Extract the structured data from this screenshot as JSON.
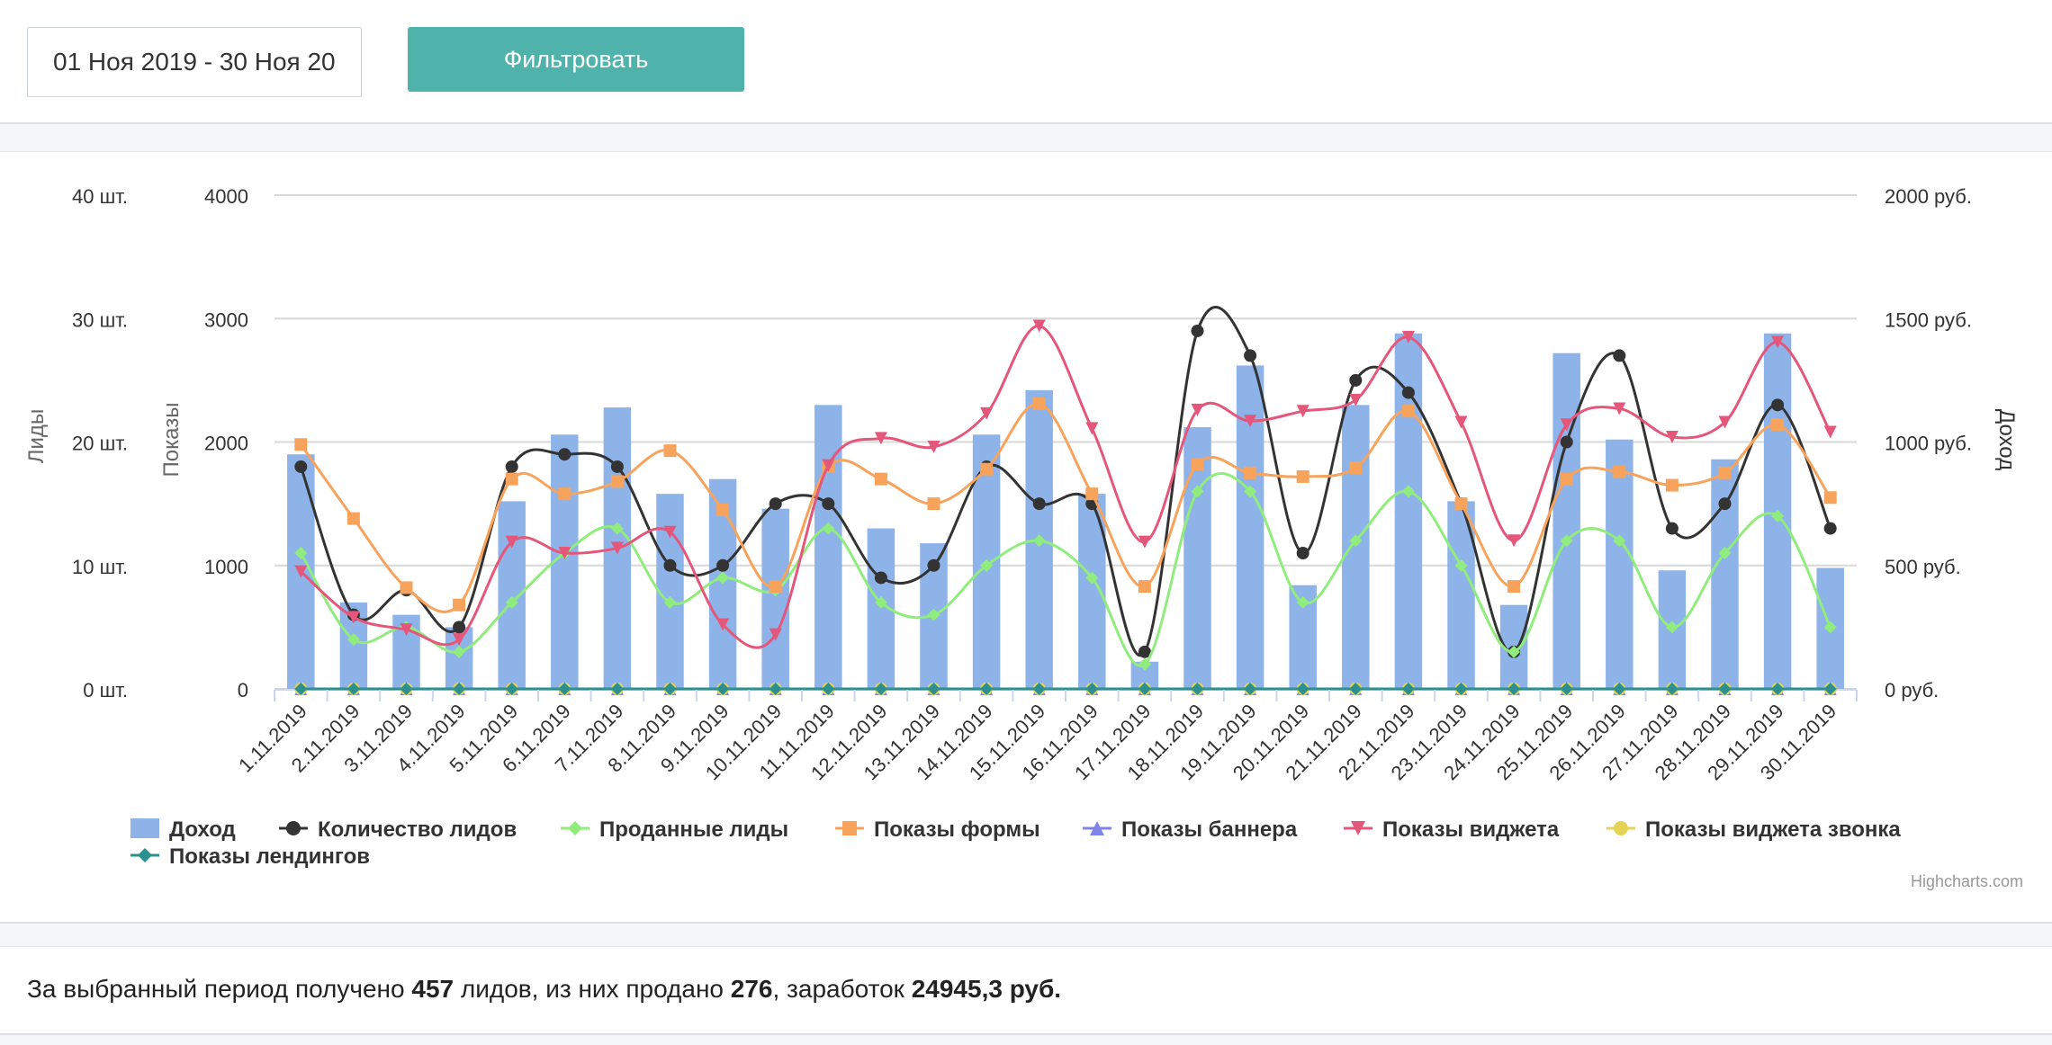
{
  "filter": {
    "date_range": "01 Ноя 2019 - 30 Ноя 20",
    "button_label": "Фильтровать"
  },
  "chart_data": {
    "type": "bar",
    "categories": [
      "1.11.2019",
      "2.11.2019",
      "3.11.2019",
      "4.11.2019",
      "5.11.2019",
      "6.11.2019",
      "7.11.2019",
      "8.11.2019",
      "9.11.2019",
      "10.11.2019",
      "11.11.2019",
      "12.11.2019",
      "13.11.2019",
      "14.11.2019",
      "15.11.2019",
      "16.11.2019",
      "17.11.2019",
      "18.11.2019",
      "19.11.2019",
      "20.11.2019",
      "21.11.2019",
      "22.11.2019",
      "23.11.2019",
      "24.11.2019",
      "25.11.2019",
      "26.11.2019",
      "27.11.2019",
      "28.11.2019",
      "29.11.2019",
      "30.11.2019"
    ],
    "axes": {
      "leads": {
        "label": "Лиды",
        "ticks": [
          "0 шт.",
          "10 шт.",
          "20 шт.",
          "30 шт.",
          "40 шт."
        ],
        "range": [
          0,
          40
        ]
      },
      "views": {
        "label": "Показы",
        "ticks": [
          "0",
          "1000",
          "2000",
          "3000",
          "4000"
        ],
        "range": [
          0,
          4000
        ]
      },
      "income": {
        "label": "Доход",
        "ticks": [
          "0 руб.",
          "500 руб.",
          "1000 руб.",
          "1500 руб.",
          "2000 руб."
        ],
        "range": [
          0,
          2000
        ]
      }
    },
    "grid": true,
    "legend_position": "bottom-left",
    "series": [
      {
        "name": "Доход",
        "type": "column",
        "axis": "income",
        "color": "#8db3e8",
        "values": [
          950,
          350,
          300,
          250,
          760,
          1030,
          1140,
          790,
          850,
          730,
          1150,
          650,
          590,
          1030,
          1210,
          790,
          110,
          1060,
          1310,
          420,
          1150,
          1440,
          760,
          340,
          1360,
          1010,
          480,
          930,
          1440,
          490
        ]
      },
      {
        "name": "Количество лидов",
        "type": "spline",
        "axis": "leads",
        "color": "#333333",
        "marker": "circle",
        "values": [
          18,
          6,
          8,
          5,
          18,
          19,
          18,
          10,
          10,
          15,
          15,
          9,
          10,
          18,
          15,
          15,
          3,
          29,
          27,
          11,
          25,
          24,
          15,
          3,
          20,
          27,
          13,
          15,
          23,
          13
        ]
      },
      {
        "name": "Проданные лиды",
        "type": "spline",
        "axis": "leads",
        "color": "#90ed7d",
        "marker": "diamond",
        "values": [
          11,
          4,
          5,
          3,
          7,
          11,
          13,
          7,
          9,
          8,
          13,
          7,
          6,
          10,
          12,
          9,
          2,
          16,
          16,
          7,
          12,
          16,
          10,
          3,
          12,
          12,
          5,
          11,
          14,
          5
        ]
      },
      {
        "name": "Показы формы",
        "type": "spline",
        "axis": "views",
        "color": "#f7a35c",
        "marker": "square",
        "values": [
          1980,
          1380,
          820,
          680,
          1700,
          1580,
          1680,
          1930,
          1450,
          830,
          1800,
          1700,
          1500,
          1780,
          2310,
          1580,
          830,
          1820,
          1750,
          1720,
          1790,
          2250,
          1500,
          830,
          1700,
          1760,
          1650,
          1750,
          2140,
          1550
        ]
      },
      {
        "name": "Показы баннера",
        "type": "spline",
        "axis": "views",
        "color": "#8085e9",
        "marker": "triangle",
        "values": [
          0,
          0,
          0,
          0,
          0,
          0,
          0,
          0,
          0,
          0,
          0,
          0,
          0,
          0,
          0,
          0,
          0,
          0,
          0,
          0,
          0,
          0,
          0,
          0,
          0,
          0,
          0,
          0,
          0,
          0
        ]
      },
      {
        "name": "Показы виджета",
        "type": "spline",
        "axis": "views",
        "color": "#e4577a",
        "marker": "triangle-down",
        "values": [
          950,
          580,
          480,
          400,
          1190,
          1100,
          1140,
          1270,
          520,
          440,
          1810,
          2030,
          1960,
          2230,
          2940,
          2110,
          1190,
          2260,
          2170,
          2250,
          2340,
          2850,
          2160,
          1200,
          2140,
          2270,
          2040,
          2160,
          2810,
          2080
        ]
      },
      {
        "name": "Показы виджета звонка",
        "type": "spline",
        "axis": "views",
        "color": "#e4d354",
        "marker": "circle",
        "values": [
          0,
          0,
          0,
          0,
          0,
          0,
          0,
          0,
          0,
          0,
          0,
          0,
          0,
          0,
          0,
          0,
          0,
          0,
          0,
          0,
          0,
          0,
          0,
          0,
          0,
          0,
          0,
          0,
          0,
          0
        ]
      },
      {
        "name": "Показы лендингов",
        "type": "spline",
        "axis": "views",
        "color": "#2b908f",
        "marker": "diamond",
        "values": [
          0,
          0,
          0,
          0,
          0,
          0,
          0,
          0,
          0,
          0,
          0,
          0,
          0,
          0,
          0,
          0,
          0,
          0,
          0,
          0,
          0,
          0,
          0,
          0,
          0,
          0,
          0,
          0,
          0,
          0
        ]
      }
    ],
    "credits": "Highcharts.com"
  },
  "summary": {
    "prefix": "За выбранный период получено ",
    "leads_count": "457",
    "middle1": " лидов, из них продано ",
    "sold_count": "276",
    "middle2": ", заработок ",
    "earnings": "24945,3 руб."
  }
}
